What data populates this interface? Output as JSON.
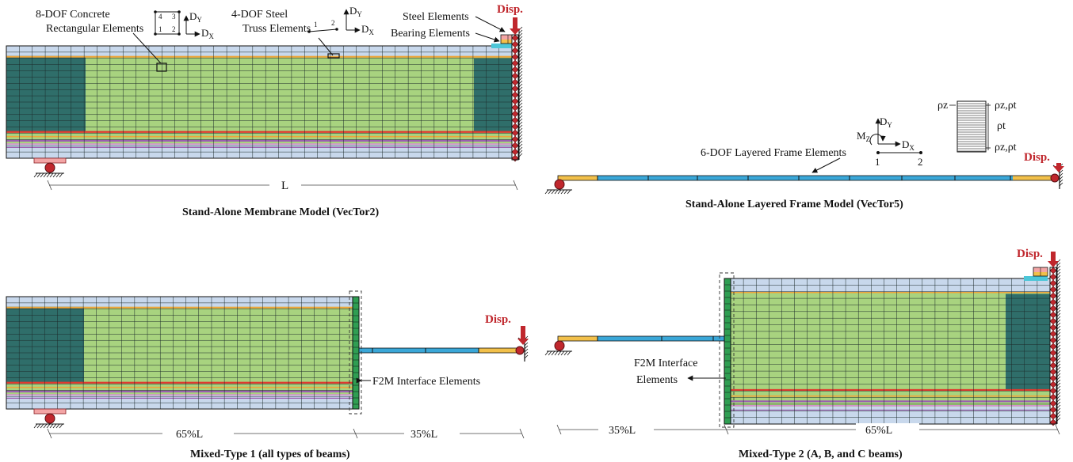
{
  "colors": {
    "concrete_core": "#a8d37f",
    "concrete_end": "#2f6e6a",
    "cover": "#c8d8ec",
    "steel_layer_red": "#e03a2f",
    "steel_layer_orange": "#f0a43a",
    "steel_layer_purple": "#9b5fb0",
    "steel_layer_pink": "#d58fd0",
    "frame_blue": "#3aa7d8",
    "frame_end_yellow": "#f2c04a",
    "support_red": "#c0272d",
    "support_pink": "#f3a5a5",
    "interface_green": "#2f9e52",
    "disp_color": "#c0272d"
  },
  "icons": [
    "support-roller-icon",
    "support-pin-icon",
    "disp-arrow-icon",
    "axis-arrow-icon"
  ],
  "top_left": {
    "callout_concrete_line1": "8-DOF Concrete",
    "callout_concrete_line2": "Rectangular Elements",
    "node_labels": [
      "4",
      "3",
      "1",
      "2"
    ],
    "dy": "D",
    "dy_sub": "Y",
    "dx": "D",
    "dx_sub": "X",
    "callout_truss_line1": "4-DOF Steel",
    "callout_truss_line2": "Truss Elements",
    "truss_nodes": [
      "1",
      "2"
    ],
    "callout_steel": "Steel Elements",
    "callout_bearing": "Bearing Elements",
    "disp": "Disp.",
    "span_label": "L",
    "caption": "Stand-Alone Membrane Model (VecTor2)"
  },
  "top_right": {
    "my": "D",
    "my_sub": "Y",
    "mz": "M",
    "mz_sub": "Z",
    "mx": "D",
    "mx_sub": "X",
    "node1": "1",
    "node2": "2",
    "layer_top_left": "ρz",
    "layer_top_right": "ρz,ρt",
    "layer_mid": "ρt",
    "layer_bot_right": "ρz,ρt",
    "callout_frame": "6-DOF Layered Frame Elements",
    "disp": "Disp.",
    "caption": "Stand-Alone Layered Frame Model (VecTor5)"
  },
  "bottom_left": {
    "callout_interface": "F2M Interface Elements",
    "disp": "Disp.",
    "dim_left": "65%L",
    "dim_right": "35%L",
    "caption": "Mixed-Type 1 (all types of beams)"
  },
  "bottom_right": {
    "callout_interface_line1": "F2M Interface",
    "callout_interface_line2": "Elements",
    "disp": "Disp.",
    "dim_left": "35%L",
    "dim_right": "65%L",
    "caption": "Mixed-Type 2 (A, B, and C beams)"
  }
}
